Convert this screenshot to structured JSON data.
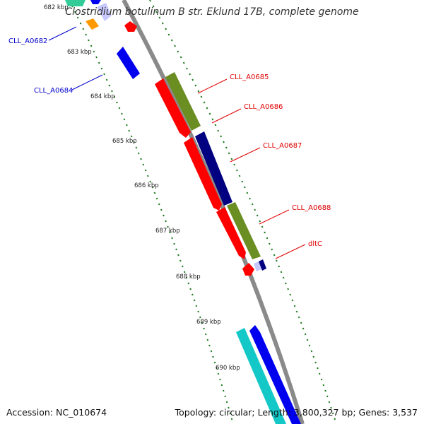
{
  "title": "Clostridium botulinum B str. Eklund 17B, complete genome",
  "accession": "Accession: NC_010674",
  "summary": "Topology: circular; Length: 3,800,327 bp; Genes: 3,537",
  "colors": {
    "backbone": "#8a8a8a",
    "dotted_track": "#1f7a1f",
    "red": "#ff0000",
    "olive": "#6b8e23",
    "navy": "#000080",
    "blue": "#0000ee",
    "cyan": "#14c8c8",
    "orange": "#ff9900",
    "teal": "#33cc99",
    "lavender": "#c8c8ff",
    "label_red": "#e00000",
    "label_blue": "#0000cc"
  },
  "kbp_ticks": [
    "682 kbp",
    "683 kbp",
    "684 kbp",
    "685 kbp",
    "686 kbp",
    "687 kbp",
    "688 kbp",
    "689 kbp",
    "690 kbp"
  ],
  "gene_labels": [
    {
      "name": "CLL_A0682",
      "side": "left"
    },
    {
      "name": "CLL_A0684",
      "side": "left"
    },
    {
      "name": "CLL_A0685",
      "side": "right"
    },
    {
      "name": "CLL_A0686",
      "side": "right"
    },
    {
      "name": "CLL_A0687",
      "side": "right"
    },
    {
      "name": "CLL_A0688",
      "side": "right"
    },
    {
      "name": "dltC",
      "side": "right"
    }
  ]
}
